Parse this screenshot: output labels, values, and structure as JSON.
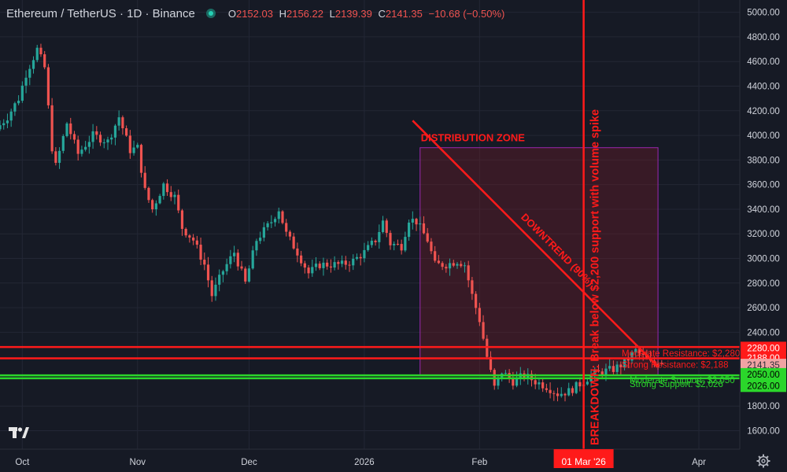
{
  "header": {
    "symbol": "Ethereum / TetherUS · 1D · Binance",
    "open_label": "O",
    "open": "2152.03",
    "high_label": "H",
    "high": "2156.22",
    "low_label": "L",
    "low": "2139.39",
    "close_label": "C",
    "close": "2141.35",
    "change": "−10.68 (−0.50%)"
  },
  "colors": {
    "background": "#161a25",
    "grid": "#232735",
    "up": "#26a69a",
    "down": "#ef5350",
    "resistance": "#ff1a1a",
    "support": "#2bd62b",
    "zone_border": "#9c27b0",
    "text": "#d1d4dc"
  },
  "chart_data": {
    "type": "candlestick",
    "symbol": "Ethereum / TetherUS",
    "interval": "1D",
    "exchange": "Binance",
    "y_ticks": [
      "5000.00",
      "4800.00",
      "4600.00",
      "4400.00",
      "4200.00",
      "4000.00",
      "3800.00",
      "3600.00",
      "3400.00",
      "3200.00",
      "3000.00",
      "2800.00",
      "2600.00",
      "2400.00",
      "1800.00",
      "1600.00"
    ],
    "ylim": [
      1450,
      5100
    ],
    "x_ticks": [
      {
        "label": "Oct",
        "date": "2025-10-01"
      },
      {
        "label": "Nov",
        "date": "2025-11-01"
      },
      {
        "label": "Dec",
        "date": "2025-12-01"
      },
      {
        "label": "2026",
        "date": "2026-01-01"
      },
      {
        "label": "Feb",
        "date": "2026-02-01"
      },
      {
        "label": "Apr",
        "date": "2026-04-01"
      }
    ],
    "xlim": [
      "2025-09-25",
      "2026-04-12"
    ],
    "last_date": "2026-03-22",
    "price_anchors": [
      [
        "2025-09-25",
        4050
      ],
      [
        "2025-09-28",
        4150
      ],
      [
        "2025-10-01",
        4300
      ],
      [
        "2025-10-03",
        4500
      ],
      [
        "2025-10-06",
        4700
      ],
      [
        "2025-10-08",
        4550
      ],
      [
        "2025-10-10",
        3900
      ],
      [
        "2025-10-11",
        3750
      ],
      [
        "2025-10-14",
        4100
      ],
      [
        "2025-10-17",
        3850
      ],
      [
        "2025-10-21",
        4000
      ],
      [
        "2025-10-25",
        3950
      ],
      [
        "2025-10-28",
        4150
      ],
      [
        "2025-10-31",
        3880
      ],
      [
        "2025-11-02",
        3900
      ],
      [
        "2025-11-04",
        3550
      ],
      [
        "2025-11-06",
        3400
      ],
      [
        "2025-11-09",
        3600
      ],
      [
        "2025-11-12",
        3500
      ],
      [
        "2025-11-14",
        3250
      ],
      [
        "2025-11-17",
        3150
      ],
      [
        "2025-11-20",
        2950
      ],
      [
        "2025-11-22",
        2700
      ],
      [
        "2025-11-25",
        2900
      ],
      [
        "2025-11-28",
        3050
      ],
      [
        "2025-12-01",
        2800
      ],
      [
        "2025-12-04",
        3150
      ],
      [
        "2025-12-08",
        3300
      ],
      [
        "2025-12-10",
        3400
      ],
      [
        "2025-12-12",
        3200
      ],
      [
        "2025-12-15",
        3050
      ],
      [
        "2025-12-18",
        2880
      ],
      [
        "2025-12-21",
        2950
      ],
      [
        "2025-12-24",
        2950
      ],
      [
        "2025-12-27",
        2950
      ],
      [
        "2025-12-30",
        2980
      ],
      [
        "2026-01-02",
        3050
      ],
      [
        "2026-01-05",
        3150
      ],
      [
        "2026-01-07",
        3300
      ],
      [
        "2026-01-09",
        3120
      ],
      [
        "2026-01-12",
        3100
      ],
      [
        "2026-01-14",
        3320
      ],
      [
        "2026-01-16",
        3300
      ],
      [
        "2026-01-19",
        3150
      ],
      [
        "2026-01-21",
        2950
      ],
      [
        "2026-01-24",
        2950
      ],
      [
        "2026-01-27",
        2980
      ],
      [
        "2026-01-29",
        2950
      ],
      [
        "2026-01-31",
        2700
      ],
      [
        "2026-02-02",
        2500
      ],
      [
        "2026-02-04",
        2200
      ],
      [
        "2026-02-06",
        1950
      ],
      [
        "2026-02-08",
        2080
      ],
      [
        "2026-02-11",
        2000
      ],
      [
        "2026-02-14",
        2050
      ],
      [
        "2026-02-17",
        2000
      ],
      [
        "2026-02-20",
        1960
      ],
      [
        "2026-02-23",
        1900
      ],
      [
        "2026-02-26",
        1920
      ],
      [
        "2026-03-01",
        1980
      ],
      [
        "2026-03-04",
        2050
      ],
      [
        "2026-03-07",
        2080
      ],
      [
        "2026-03-10",
        2100
      ],
      [
        "2026-03-13",
        2150
      ],
      [
        "2026-03-16",
        2250
      ],
      [
        "2026-03-18",
        2200
      ],
      [
        "2026-03-20",
        2150
      ],
      [
        "2026-03-22",
        2141
      ]
    ],
    "horizontal_lines": [
      {
        "price": 2280,
        "label": "Moderate Resistance: $2,280",
        "axis_label": "2280.00",
        "color": "#ff1a1a"
      },
      {
        "price": 2188,
        "label": "Strong Resistance: $2,188",
        "axis_label": "2188.00",
        "color": "#ff1a1a"
      },
      {
        "price": 2050,
        "label": "Moderate Support: $2,050",
        "axis_label": "2050.00",
        "color": "#2bd62b"
      },
      {
        "price": 2026,
        "label": "Strong Support: $2,026",
        "axis_label": "2026.00",
        "color": "#2bd62b"
      }
    ],
    "last_price": {
      "price": 2141.35,
      "label": "2141.35"
    },
    "vertical_line": {
      "date": "2026-03-01",
      "label": "01 Mar '26",
      "annotation": "BREAKDOWN: Break below $2,200 support with volume spike"
    },
    "zone": {
      "label": "DISTRIBUTION ZONE",
      "x_start": "2026-01-16",
      "x_end": "2026-03-21",
      "y_high": 3900,
      "y_low": 2050
    },
    "trendline": {
      "label": "DOWNTREND (90%)",
      "start": [
        "2026-01-14",
        4120
      ],
      "end": [
        "2026-03-21",
        2120
      ]
    }
  }
}
